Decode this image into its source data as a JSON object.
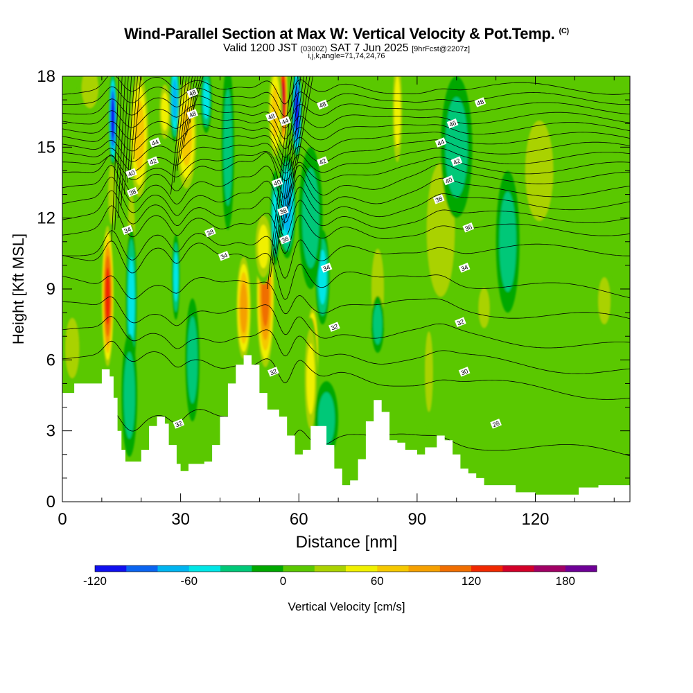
{
  "title": {
    "main": "Wind-Parallel Section at Max W: Vertical Velocity & Pot.Temp.",
    "mark": "(C)",
    "valid_prefix": "Valid 1200 JST",
    "valid_utc": "(0300Z)",
    "valid_date": "SAT 7 Jun 2025",
    "forecast": "[9hrFcst@2207z]",
    "params": "i,j,k,angle=71,74,24,76"
  },
  "chart_data": {
    "type": "heatmap",
    "xlabel": "Distance [nm]",
    "ylabel": "Height [Kft MSL]",
    "xlim": [
      0,
      144
    ],
    "ylim": [
      0,
      18
    ],
    "x_ticks": [
      0,
      30,
      60,
      90,
      120
    ],
    "y_ticks": [
      0,
      3,
      6,
      9,
      12,
      15,
      18
    ],
    "colorbar": {
      "label": "Vertical Velocity [cm/s]",
      "ticks": [
        -120,
        -60,
        0,
        60,
        120,
        180
      ],
      "bounds": [
        -120,
        -100,
        -80,
        -60,
        -40,
        -20,
        0,
        20,
        40,
        60,
        80,
        100,
        120,
        140,
        160,
        180,
        200
      ],
      "colors": [
        "#1010ee",
        "#0a64f0",
        "#00b4f0",
        "#00e6e6",
        "#00c878",
        "#00a800",
        "#5ac800",
        "#aad200",
        "#f0f000",
        "#f5c800",
        "#f5a000",
        "#f06e00",
        "#f02800",
        "#d20028",
        "#a00064",
        "#6e0096"
      ]
    },
    "terrain_height_kft": [
      [
        0,
        4.6
      ],
      [
        3,
        5.0
      ],
      [
        7,
        5.0
      ],
      [
        10,
        5.6
      ],
      [
        12,
        5.3
      ],
      [
        13,
        4.4
      ],
      [
        14,
        3.0
      ],
      [
        15,
        2.2
      ],
      [
        16,
        1.7
      ],
      [
        18,
        1.7
      ],
      [
        20,
        2.2
      ],
      [
        22,
        3.2
      ],
      [
        24,
        3.6
      ],
      [
        26,
        3.3
      ],
      [
        27,
        2.4
      ],
      [
        29,
        1.6
      ],
      [
        30,
        1.3
      ],
      [
        32,
        1.6
      ],
      [
        34,
        1.6
      ],
      [
        36,
        1.7
      ],
      [
        38,
        2.4
      ],
      [
        40,
        3.6
      ],
      [
        42,
        5.0
      ],
      [
        44,
        5.8
      ],
      [
        46,
        6.2
      ],
      [
        48,
        5.8
      ],
      [
        50,
        4.6
      ],
      [
        52,
        3.9
      ],
      [
        55,
        3.6
      ],
      [
        57,
        2.8
      ],
      [
        59,
        2.0
      ],
      [
        61,
        2.2
      ],
      [
        63,
        3.2
      ],
      [
        65,
        3.2
      ],
      [
        67,
        2.4
      ],
      [
        69,
        1.4
      ],
      [
        71,
        0.7
      ],
      [
        73,
        0.9
      ],
      [
        75,
        1.8
      ],
      [
        77,
        3.4
      ],
      [
        79,
        4.3
      ],
      [
        81,
        3.8
      ],
      [
        83,
        2.6
      ],
      [
        85,
        2.5
      ],
      [
        87,
        2.2
      ],
      [
        89,
        2.2
      ],
      [
        90,
        2.0
      ],
      [
        92,
        2.3
      ],
      [
        95,
        2.8
      ],
      [
        97,
        2.6
      ],
      [
        99,
        2.0
      ],
      [
        101,
        1.4
      ],
      [
        103,
        1.2
      ],
      [
        105,
        1.0
      ],
      [
        107,
        0.7
      ],
      [
        112,
        0.7
      ],
      [
        115,
        0.4
      ],
      [
        118,
        0.4
      ],
      [
        120,
        0.3
      ],
      [
        125,
        0.3
      ],
      [
        128,
        0.3
      ],
      [
        131,
        0.6
      ],
      [
        136,
        0.7
      ],
      [
        144,
        0.7
      ]
    ],
    "updrafts": [
      {
        "x": 11.5,
        "y": 8.7,
        "rx": 1.6,
        "ry": 3.2,
        "w": 140
      },
      {
        "x": 12.5,
        "y": 13.0,
        "rx": 1.2,
        "ry": 1.8,
        "w": 30
      },
      {
        "x": 19.5,
        "y": 15.5,
        "rx": 2.6,
        "ry": 3.0,
        "w": 70
      },
      {
        "x": 17.5,
        "y": 11.5,
        "rx": 1.2,
        "ry": 2.2,
        "w": 40
      },
      {
        "x": 31.5,
        "y": 15.5,
        "rx": 2.8,
        "ry": 2.6,
        "w": 80
      },
      {
        "x": 26.0,
        "y": 16.5,
        "rx": 1.6,
        "ry": 1.4,
        "w": 60
      },
      {
        "x": 46.0,
        "y": 8.2,
        "rx": 2.0,
        "ry": 2.4,
        "w": 100
      },
      {
        "x": 51.5,
        "y": 8.8,
        "rx": 2.4,
        "ry": 3.4,
        "w": 110
      },
      {
        "x": 51.0,
        "y": 10.8,
        "rx": 2.4,
        "ry": 1.6,
        "w": 60
      },
      {
        "x": 56.0,
        "y": 17.0,
        "rx": 1.2,
        "ry": 2.2,
        "w": 150
      },
      {
        "x": 54.0,
        "y": 16.5,
        "rx": 1.8,
        "ry": 2.2,
        "w": 70
      },
      {
        "x": 63.5,
        "y": 6.2,
        "rx": 1.6,
        "ry": 2.2,
        "w": 110
      },
      {
        "x": 63.0,
        "y": 5.2,
        "rx": 1.8,
        "ry": 2.6,
        "w": 50
      },
      {
        "x": 85.0,
        "y": 16.5,
        "rx": 1.4,
        "ry": 2.6,
        "w": 60
      },
      {
        "x": 80.0,
        "y": 9.0,
        "rx": 2.2,
        "ry": 2.4,
        "w": 30
      },
      {
        "x": 96.5,
        "y": 9.0,
        "rx": 1.2,
        "ry": 1.0,
        "w": 60
      },
      {
        "x": 96.0,
        "y": 11.5,
        "rx": 5.0,
        "ry": 4.0,
        "w": 25
      },
      {
        "x": 93.0,
        "y": 4.5,
        "rx": 1.0,
        "ry": 1.4,
        "w": 60
      },
      {
        "x": 93.0,
        "y": 5.5,
        "rx": 1.4,
        "ry": 2.4,
        "w": 35
      },
      {
        "x": 107.0,
        "y": 8.2,
        "rx": 2.0,
        "ry": 1.2,
        "w": 30
      },
      {
        "x": 2.5,
        "y": 6.5,
        "rx": 2.5,
        "ry": 1.8,
        "w": 25
      },
      {
        "x": 137.5,
        "y": 8.5,
        "rx": 2.2,
        "ry": 1.4,
        "w": 30
      },
      {
        "x": 7.0,
        "y": 17.5,
        "rx": 3.0,
        "ry": 1.2,
        "w": 25
      },
      {
        "x": 121.0,
        "y": 14.0,
        "rx": 5.0,
        "ry": 3.0,
        "w": 22
      }
    ],
    "downdrafts": [
      {
        "x": 12.8,
        "y": 16.2,
        "rx": 1.0,
        "ry": 2.0,
        "w": -110
      },
      {
        "x": 17.5,
        "y": 8.5,
        "rx": 1.4,
        "ry": 3.2,
        "w": -55
      },
      {
        "x": 17.0,
        "y": 4.5,
        "rx": 2.0,
        "ry": 2.6,
        "w": -35
      },
      {
        "x": 28.5,
        "y": 17.0,
        "rx": 1.2,
        "ry": 1.8,
        "w": -70
      },
      {
        "x": 28.8,
        "y": 9.5,
        "rx": 1.0,
        "ry": 1.8,
        "w": -50
      },
      {
        "x": 33.0,
        "y": 6.0,
        "rx": 1.8,
        "ry": 2.6,
        "w": -35
      },
      {
        "x": 36.5,
        "y": 17.0,
        "rx": 1.4,
        "ry": 1.4,
        "w": -55
      },
      {
        "x": 42.0,
        "y": 15.0,
        "rx": 1.6,
        "ry": 3.5,
        "w": -30
      },
      {
        "x": 59.5,
        "y": 16.5,
        "rx": 1.2,
        "ry": 2.0,
        "w": -115
      },
      {
        "x": 57.0,
        "y": 12.5,
        "rx": 2.2,
        "ry": 2.2,
        "w": -70
      },
      {
        "x": 54.0,
        "y": 12.0,
        "rx": 1.2,
        "ry": 2.0,
        "w": -50
      },
      {
        "x": 66.0,
        "y": 9.5,
        "rx": 1.8,
        "ry": 2.0,
        "w": -55
      },
      {
        "x": 63.0,
        "y": 12.0,
        "rx": 3.0,
        "ry": 3.0,
        "w": -30
      },
      {
        "x": 80.0,
        "y": 7.5,
        "rx": 1.6,
        "ry": 1.2,
        "w": -30
      },
      {
        "x": 67.0,
        "y": 3.5,
        "rx": 3.0,
        "ry": 1.6,
        "w": -25
      },
      {
        "x": 100.0,
        "y": 15.0,
        "rx": 4.0,
        "ry": 3.0,
        "w": -25
      },
      {
        "x": 113.0,
        "y": 11.0,
        "rx": 3.0,
        "ry": 3.0,
        "w": -22
      }
    ],
    "theta_contours": {
      "levels": [
        28,
        30,
        31,
        32,
        33,
        34,
        35,
        36,
        37,
        38,
        39,
        40,
        41,
        42,
        43,
        44,
        45,
        46,
        47,
        48,
        49
      ],
      "levels_with_label": [
        28,
        30,
        32,
        34,
        36,
        38,
        40,
        42,
        44,
        46,
        48
      ],
      "labels": [
        {
          "v": 48,
          "x": 33.0,
          "y": 17.3
        },
        {
          "v": 48,
          "x": 33.0,
          "y": 16.4
        },
        {
          "v": 48,
          "x": 66.0,
          "y": 16.8
        },
        {
          "v": 48,
          "x": 106.0,
          "y": 16.9
        },
        {
          "v": 48,
          "x": 53.0,
          "y": 16.3
        },
        {
          "v": 46,
          "x": 99.0,
          "y": 16.0
        },
        {
          "v": 44,
          "x": 23.5,
          "y": 15.2
        },
        {
          "v": 44,
          "x": 56.5,
          "y": 16.1
        },
        {
          "v": 44,
          "x": 96.0,
          "y": 15.2
        },
        {
          "v": 42,
          "x": 23.0,
          "y": 14.4
        },
        {
          "v": 42,
          "x": 66.0,
          "y": 14.4
        },
        {
          "v": 42,
          "x": 100.0,
          "y": 14.4
        },
        {
          "v": 40,
          "x": 17.5,
          "y": 13.9
        },
        {
          "v": 40,
          "x": 54.5,
          "y": 13.5
        },
        {
          "v": 40,
          "x": 98.0,
          "y": 13.6
        },
        {
          "v": 38,
          "x": 17.8,
          "y": 13.1
        },
        {
          "v": 38,
          "x": 56.0,
          "y": 12.3
        },
        {
          "v": 38,
          "x": 95.5,
          "y": 12.8
        },
        {
          "v": 38,
          "x": 37.5,
          "y": 11.4
        },
        {
          "v": 36,
          "x": 103.0,
          "y": 11.6
        },
        {
          "v": 36,
          "x": 56.5,
          "y": 11.1
        },
        {
          "v": 34,
          "x": 16.5,
          "y": 11.5
        },
        {
          "v": 34,
          "x": 41.0,
          "y": 10.4
        },
        {
          "v": 34,
          "x": 67.0,
          "y": 9.9
        },
        {
          "v": 34,
          "x": 102.0,
          "y": 9.9
        },
        {
          "v": 32,
          "x": 69.0,
          "y": 7.4
        },
        {
          "v": 32,
          "x": 101.0,
          "y": 7.6
        },
        {
          "v": 32,
          "x": 53.5,
          "y": 5.5
        },
        {
          "v": 32,
          "x": 29.5,
          "y": 3.3
        },
        {
          "v": 30,
          "x": 102.0,
          "y": 5.5
        },
        {
          "v": 28,
          "x": 110.0,
          "y": 3.3
        }
      ]
    }
  }
}
